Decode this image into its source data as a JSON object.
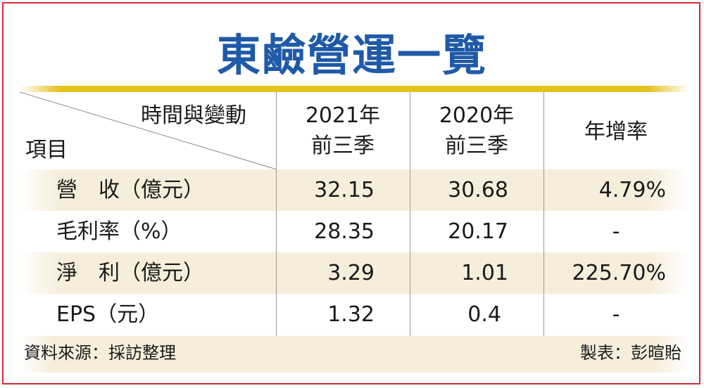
{
  "title": "東鹼營運一覽",
  "header": {
    "corner_top": "時間與變動",
    "corner_bottom": "項目",
    "col1_line1": "2021年",
    "col1_line2": "前三季",
    "col2_line1": "2020年",
    "col2_line2": "前三季",
    "col3": "年增率"
  },
  "rows": [
    {
      "label": "營　收（億元）",
      "v2021": "32.15",
      "v2020": "30.68",
      "growth": "4.79%"
    },
    {
      "label": "毛利率（%）",
      "v2021": "28.35",
      "v2020": "20.17",
      "growth": "-"
    },
    {
      "label": "淨　利（億元）",
      "v2021": "3.29",
      "v2020": "1.01",
      "growth": "225.70%"
    },
    {
      "label": "EPS（元）",
      "v2021": "1.32",
      "v2020": "0.4",
      "growth": "-"
    }
  ],
  "footer": {
    "source": "資料來源：採訪整理",
    "maker": "製表：彭暄貽"
  },
  "colors": {
    "title": "#1f5aa8",
    "border": "#d62a38",
    "gold_bar": "#e6c21f",
    "band": "#f6eedb"
  }
}
